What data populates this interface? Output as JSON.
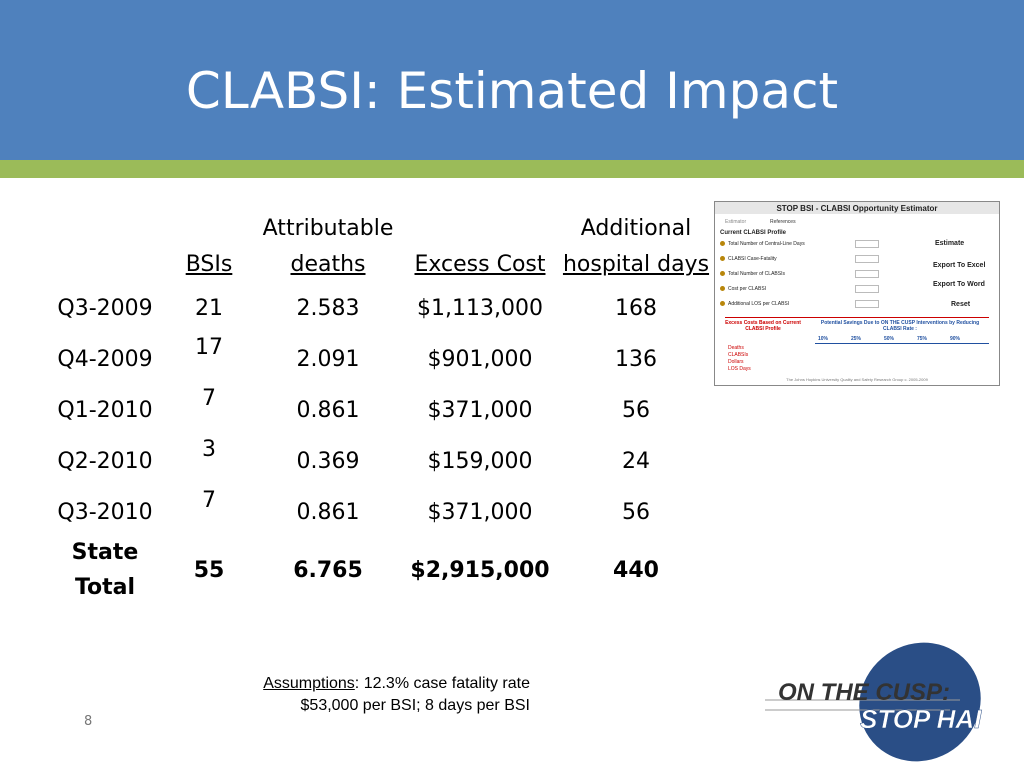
{
  "title": "CLABSI: Estimated Impact",
  "table": {
    "header": [
      {
        "top": "",
        "bottom": "BSIs"
      },
      {
        "top": "Attributable",
        "bottom": "deaths"
      },
      {
        "top": "",
        "bottom": "Excess Cost"
      },
      {
        "top": "Additional",
        "bottom": "hospital days"
      }
    ],
    "rows": [
      [
        "Q3-2009",
        "21",
        "2.583",
        "$1,113,000",
        "168"
      ],
      [
        "Q4-2009",
        "17",
        "2.091",
        "$901,000",
        "136"
      ],
      [
        "Q1-2010",
        "7",
        "0.861",
        "$371,000",
        "56"
      ],
      [
        "Q2-2010",
        "3",
        "0.369",
        "$159,000",
        "24"
      ],
      [
        "Q3-2010",
        "7",
        "0.861",
        "$371,000",
        "56"
      ]
    ],
    "total": {
      "label_top": "State",
      "label_bottom": "Total",
      "values": [
        "55",
        "6.765",
        "$2,915,000",
        "440"
      ]
    }
  },
  "assumptions": {
    "label": "Assumptions",
    "line1": ": 12.3% case fatality rate",
    "line2": "$53,000 per BSI; 8 days per BSI"
  },
  "page_number": "8",
  "logo": {
    "line1": "ON THE CUSP:",
    "line2": "STOP HAI"
  },
  "inset": {
    "title": "STOP BSI - CLABSI Opportunity Estimator",
    "tabs": [
      "Estimator",
      "References"
    ],
    "section": "Current CLABSI Profile",
    "fields": [
      "Total Number of Central-Line Days",
      "CLABSI Case-Fatality",
      "Total Number of CLABSIs",
      "Cost per CLABSI",
      "Additional LOS per CLABSI"
    ],
    "buttons": [
      "Estimate",
      "Export To Excel",
      "Export To Word",
      "Reset"
    ],
    "excess": "Excess Costs Based on Current CLABSI Profile",
    "savings": "Potential Savings Due to ON THE CUSP Interventions by Reducing CLABSI Rate :",
    "percents": [
      "10%",
      "25%",
      "50%",
      "75%",
      "90%"
    ],
    "measures": [
      "Deaths",
      "CLABSIs",
      "Dollars",
      "LOS Days"
    ],
    "footer": "The Johns Hopkins University Quality and Safety Research Group c. 2005-2009"
  }
}
